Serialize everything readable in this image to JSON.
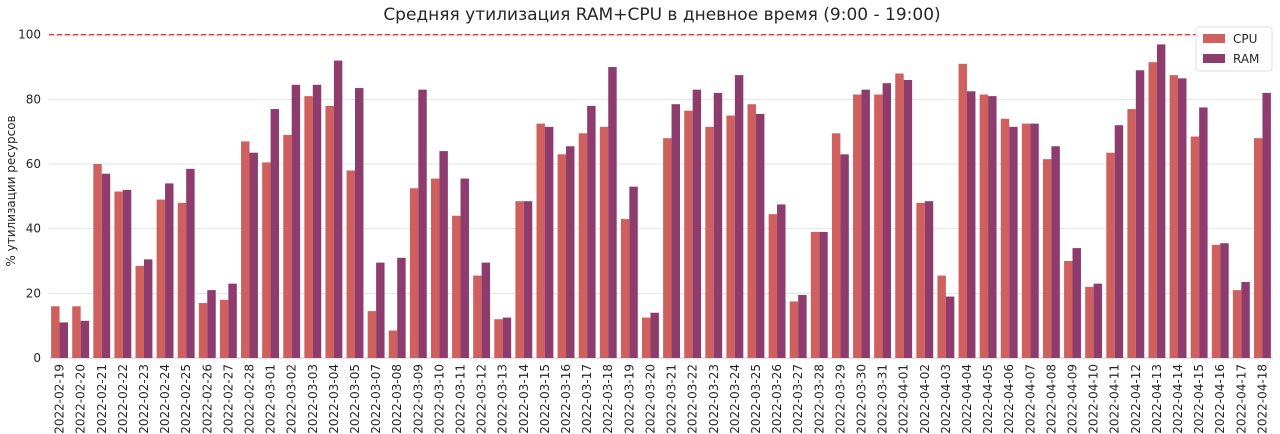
{
  "chart_data": {
    "type": "bar",
    "title": "Средняя утилизация RAM+CPU в дневное время (9:00 - 19:00)",
    "xlabel": "",
    "ylabel": "% утилизации ресурсов",
    "ylim": [
      0,
      103
    ],
    "yticks": [
      0,
      20,
      40,
      60,
      80,
      100
    ],
    "grid": true,
    "reference_line": {
      "y": 100,
      "color": "#e3342f",
      "style": "dashed"
    },
    "legend": {
      "placement": "top-right"
    },
    "categories": [
      "2022-02-19",
      "2022-02-20",
      "2022-02-21",
      "2022-02-22",
      "2022-02-23",
      "2022-02-24",
      "2022-02-25",
      "2022-02-26",
      "2022-02-27",
      "2022-02-28",
      "2022-03-01",
      "2022-03-02",
      "2022-03-03",
      "2022-03-04",
      "2022-03-05",
      "2022-03-07",
      "2022-03-08",
      "2022-03-09",
      "2022-03-10",
      "2022-03-11",
      "2022-03-12",
      "2022-03-13",
      "2022-03-14",
      "2022-03-15",
      "2022-03-16",
      "2022-03-17",
      "2022-03-18",
      "2022-03-19",
      "2022-03-20",
      "2022-03-21",
      "2022-03-22",
      "2022-03-23",
      "2022-03-24",
      "2022-03-25",
      "2022-03-26",
      "2022-03-27",
      "2022-03-28",
      "2022-03-29",
      "2022-03-30",
      "2022-03-31",
      "2022-04-01",
      "2022-04-02",
      "2022-04-03",
      "2022-04-04",
      "2022-04-05",
      "2022-04-06",
      "2022-04-07",
      "2022-04-08",
      "2022-04-09",
      "2022-04-10",
      "2022-04-11",
      "2022-04-12",
      "2022-04-13",
      "2022-04-14",
      "2022-04-15",
      "2022-04-16",
      "2022-04-17",
      "2022-04-18"
    ],
    "series": [
      {
        "name": "CPU",
        "color": "#d0605e",
        "values": [
          16,
          16,
          60,
          51.5,
          28.5,
          49,
          48,
          17,
          18,
          67,
          60.5,
          69,
          81,
          78,
          58,
          14.5,
          8.5,
          52.5,
          55.5,
          44,
          25.5,
          12,
          48.5,
          72.5,
          63,
          69.5,
          71.5,
          43,
          12.5,
          68,
          76.5,
          71.5,
          75,
          78.5,
          44.5,
          17.5,
          39,
          69.5,
          81.5,
          81.5,
          88,
          48,
          25.5,
          91,
          81.5,
          74,
          72.5,
          61.5,
          30,
          22,
          63.5,
          77,
          91.5,
          87.5,
          68.5,
          35,
          21,
          68
        ]
      },
      {
        "name": "RAM",
        "color": "#8e3b6e",
        "values": [
          11,
          11.5,
          57,
          52,
          30.5,
          54,
          58.5,
          21,
          23,
          63.5,
          77,
          84.5,
          84.5,
          92,
          83.5,
          29.5,
          31,
          83,
          64,
          55.5,
          29.5,
          12.5,
          48.5,
          71.5,
          65.5,
          78,
          90,
          53,
          14,
          78.5,
          83,
          82,
          87.5,
          75.5,
          47.5,
          19.5,
          39,
          63,
          83,
          85,
          86,
          48.5,
          19,
          82.5,
          81,
          71.5,
          72.5,
          65.5,
          34,
          23,
          72,
          89,
          97,
          86.5,
          77.5,
          35.5,
          23.5,
          82
        ]
      }
    ]
  }
}
